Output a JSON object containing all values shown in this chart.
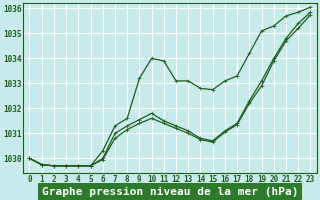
{
  "background_color": "#c8eaea",
  "grid_color": "#b8d8d8",
  "line_color": "#1e5c1e",
  "title": "Graphe pression niveau de la mer (hPa)",
  "xlim": [
    -0.5,
    23.5
  ],
  "ylim": [
    1029.4,
    1036.2
  ],
  "yticks": [
    1030,
    1031,
    1032,
    1033,
    1034,
    1035,
    1036
  ],
  "xticks": [
    0,
    1,
    2,
    3,
    4,
    5,
    6,
    7,
    8,
    9,
    10,
    11,
    12,
    13,
    14,
    15,
    16,
    17,
    18,
    19,
    20,
    21,
    22,
    23
  ],
  "series1_x": [
    0,
    1,
    2,
    3,
    4,
    5,
    6,
    7,
    8,
    9,
    10,
    11,
    12,
    13,
    14,
    15,
    16,
    17,
    18,
    19,
    20,
    21,
    22,
    23
  ],
  "series1_y": [
    1030.0,
    1029.75,
    1029.7,
    1029.7,
    1029.7,
    1029.7,
    1030.3,
    1031.3,
    1031.6,
    1033.2,
    1034.0,
    1033.9,
    1033.1,
    1033.1,
    1032.8,
    1032.75,
    1033.1,
    1033.3,
    1034.2,
    1035.1,
    1035.3,
    1035.7,
    1035.85,
    1036.05
  ],
  "series2_x": [
    0,
    1,
    2,
    3,
    4,
    5,
    6,
    7,
    8,
    9,
    10,
    11,
    12,
    13,
    14,
    15,
    16,
    17,
    18,
    19,
    20,
    21,
    22,
    23
  ],
  "series2_y": [
    1030.0,
    1029.75,
    1029.7,
    1029.7,
    1029.7,
    1029.7,
    1030.0,
    1031.0,
    1031.3,
    1031.55,
    1031.8,
    1031.5,
    1031.3,
    1031.1,
    1030.8,
    1030.7,
    1031.1,
    1031.4,
    1032.3,
    1033.1,
    1034.0,
    1034.8,
    1035.4,
    1035.85
  ],
  "series3_x": [
    0,
    1,
    2,
    3,
    4,
    5,
    6,
    7,
    8,
    9,
    10,
    11,
    12,
    13,
    14,
    15,
    16,
    17,
    18,
    19,
    20,
    21,
    22,
    23
  ],
  "series3_y": [
    1030.0,
    1029.75,
    1029.7,
    1029.7,
    1029.7,
    1029.7,
    1029.95,
    1030.8,
    1031.15,
    1031.4,
    1031.6,
    1031.4,
    1031.2,
    1031.0,
    1030.75,
    1030.65,
    1031.05,
    1031.35,
    1032.2,
    1032.9,
    1033.9,
    1034.7,
    1035.2,
    1035.75
  ],
  "title_fontsize": 8,
  "tick_fontsize": 5.5,
  "title_bg": "#2d7a2d",
  "title_fg": "#ffffff"
}
